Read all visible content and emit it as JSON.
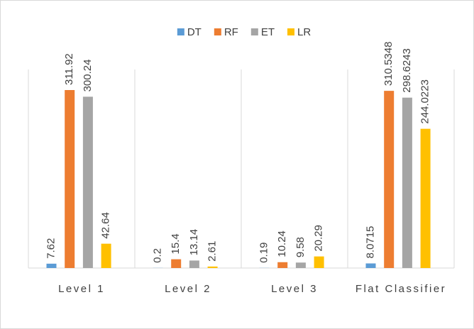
{
  "chart_data": {
    "type": "bar",
    "categories": [
      "Level 1",
      "Level 2",
      "Level 3",
      "Flat Classifier"
    ],
    "series": [
      {
        "name": "DT",
        "color": "#5b9bd5",
        "values": [
          7.62,
          0.2,
          0.19,
          8.0715
        ]
      },
      {
        "name": "RF",
        "color": "#ed7d31",
        "values": [
          311.92,
          15.4,
          10.24,
          310.5348
        ]
      },
      {
        "name": "ET",
        "color": "#a5a5a5",
        "values": [
          300.24,
          13.14,
          9.58,
          298.6243
        ]
      },
      {
        "name": "LR",
        "color": "#ffc000",
        "values": [
          42.64,
          2.61,
          20.29,
          244.0223
        ]
      }
    ],
    "legend": "top"
  }
}
